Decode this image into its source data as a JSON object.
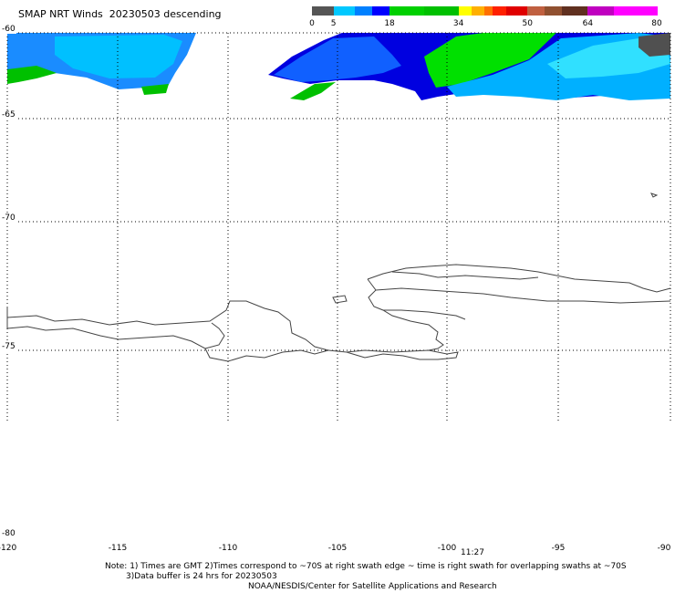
{
  "title": "SMAP NRT Winds  20230503 descending",
  "colorbar": {
    "segments": [
      {
        "from": 0,
        "to": 5,
        "color": "#555555"
      },
      {
        "from": 5,
        "to": 10,
        "color": "#00c8ff"
      },
      {
        "from": 10,
        "to": 14,
        "color": "#0080ff"
      },
      {
        "from": 14,
        "to": 18,
        "color": "#0000ff"
      },
      {
        "from": 18,
        "to": 26,
        "color": "#00d000"
      },
      {
        "from": 26,
        "to": 34,
        "color": "#00c000"
      },
      {
        "from": 34,
        "to": 37,
        "color": "#ffff00"
      },
      {
        "from": 37,
        "to": 40,
        "color": "#ffb000"
      },
      {
        "from": 40,
        "to": 42,
        "color": "#ff7000"
      },
      {
        "from": 42,
        "to": 45,
        "color": "#ff2000"
      },
      {
        "from": 45,
        "to": 50,
        "color": "#e00000"
      },
      {
        "from": 50,
        "to": 54,
        "color": "#c06040"
      },
      {
        "from": 54,
        "to": 58,
        "color": "#905030"
      },
      {
        "from": 58,
        "to": 64,
        "color": "#603020"
      },
      {
        "from": 64,
        "to": 70,
        "color": "#c000c0"
      },
      {
        "from": 70,
        "to": 80,
        "color": "#ff00ff"
      }
    ],
    "labels": [
      "0",
      "5",
      "18",
      "34",
      "50",
      "64",
      "80"
    ]
  },
  "axes": {
    "lat_labels": [
      "-60",
      "-65",
      "-70",
      "-75",
      "-80"
    ],
    "lon_labels": [
      "-120",
      "-115",
      "-110",
      "-105",
      "-100",
      "-95",
      "-90"
    ]
  },
  "time_label": "11:27",
  "notes": [
    "Note: 1) Times are GMT 2)Times correspond to ~70S at right swath edge ~ time is right swath for overlapping swaths at ~70S",
    "3)Data buffer is 24 hrs for 20230503",
    "NOAA/NESDIS/Center for Satellite Applications and Research"
  ]
}
